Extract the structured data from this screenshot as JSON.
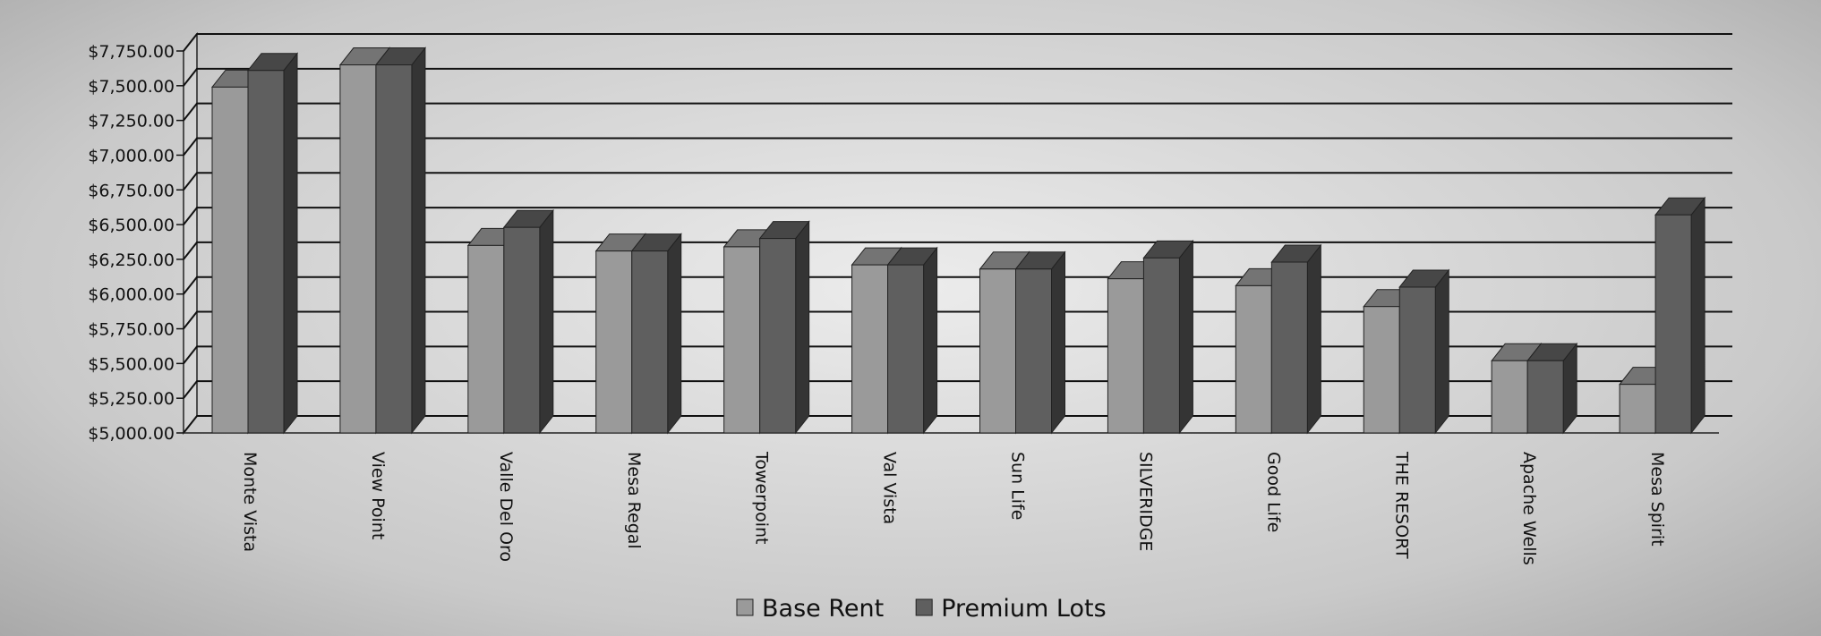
{
  "chart_data": {
    "type": "bar",
    "categories": [
      "Monte Vista",
      "View Point",
      "Valle Del Oro",
      "Mesa Regal",
      "Towerpoint",
      "Val Vista",
      "Sun Life",
      "SILVERIDGE",
      "Good Life",
      "THE RESORT",
      "Apache Wells",
      "Mesa Spirit"
    ],
    "series": [
      {
        "name": "Base Rent",
        "values": [
          7490,
          7650,
          6350,
          6310,
          6340,
          6210,
          6180,
          6110,
          6060,
          5910,
          5520,
          5350
        ],
        "color": "#9a9a9a"
      },
      {
        "name": "Premium Lots",
        "values": [
          7610,
          7650,
          6480,
          6310,
          6400,
          6210,
          6180,
          6260,
          6230,
          6050,
          5520,
          6570
        ],
        "color": "#5f5f5f"
      }
    ],
    "ylim": [
      5000,
      7750
    ],
    "yticks": [
      "$5,000.00",
      "$5,250.00",
      "$5,500.00",
      "$5,750.00",
      "$6,000.00",
      "$6,250.00",
      "$6,500.00",
      "$6,750.00",
      "$7,000.00",
      "$7,250.00",
      "$7,500.00",
      "$7,750.00"
    ],
    "grid": true,
    "legend": "bottom",
    "style": "3d-clustered-column"
  }
}
